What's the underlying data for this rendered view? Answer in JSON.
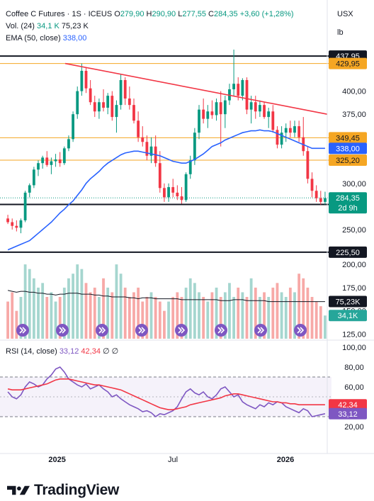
{
  "header": {
    "symbol": "Coffee C Futures · 1S · ICEUS",
    "open_label": "O",
    "open": "279,90",
    "high_label": "H",
    "high": "290,90",
    "low_label": "L",
    "low": "277,55",
    "close_label": "C",
    "close": "284,35",
    "change": "+3,60 (+1,28%)",
    "volume_label": "Vol. (24)",
    "volume_value": "34,1 K",
    "volume_ma": "75,23 K",
    "ema_label": "EMA (50, close)",
    "ema_value": "338,00",
    "rsi_label": "RSI (14, close)",
    "rsi_value": "33,12",
    "rsi_ma": "42,34",
    "rsi_na1": "∅",
    "rsi_na2": "∅"
  },
  "currency": "USX",
  "unit": "lb",
  "colors": {
    "up": "#089981",
    "down": "#f23645",
    "ema": "#2962ff",
    "trend": "#f23645",
    "hline_orange": "#f5a623",
    "hline_black": "#131722",
    "rsi": "#7e57c2",
    "rsi_ma": "#f23645",
    "vol_up": "#a5d6cf",
    "vol_down": "#f7a9a7"
  },
  "icons": [
    "tradingview-logo-icon",
    "flash-arrow-icon"
  ],
  "chart_data": [
    {
      "type": "candlestick",
      "ylim": [
        230,
        445
      ],
      "price_ticks": [
        "400,00",
        "375,00",
        "300,00",
        "250,00"
      ],
      "x_ticks": [
        "2025",
        "Jul",
        "2026"
      ],
      "candles": [
        {
          "o": 262,
          "h": 266,
          "l": 256,
          "c": 258
        },
        {
          "o": 258,
          "h": 262,
          "l": 250,
          "c": 254
        },
        {
          "o": 254,
          "h": 260,
          "l": 248,
          "c": 252
        },
        {
          "o": 252,
          "h": 262,
          "l": 246,
          "c": 260
        },
        {
          "o": 260,
          "h": 292,
          "l": 258,
          "c": 290
        },
        {
          "o": 290,
          "h": 300,
          "l": 285,
          "c": 298
        },
        {
          "o": 298,
          "h": 318,
          "l": 295,
          "c": 315
        },
        {
          "o": 315,
          "h": 325,
          "l": 308,
          "c": 322
        },
        {
          "o": 322,
          "h": 330,
          "l": 316,
          "c": 328
        },
        {
          "o": 328,
          "h": 335,
          "l": 318,
          "c": 320
        },
        {
          "o": 320,
          "h": 328,
          "l": 310,
          "c": 324
        },
        {
          "o": 324,
          "h": 332,
          "l": 318,
          "c": 326
        },
        {
          "o": 326,
          "h": 334,
          "l": 318,
          "c": 322
        },
        {
          "o": 322,
          "h": 340,
          "l": 320,
          "c": 338
        },
        {
          "o": 338,
          "h": 352,
          "l": 335,
          "c": 348
        },
        {
          "o": 348,
          "h": 378,
          "l": 345,
          "c": 375
        },
        {
          "o": 375,
          "h": 405,
          "l": 370,
          "c": 400
        },
        {
          "o": 400,
          "h": 430,
          "l": 395,
          "c": 422
        },
        {
          "o": 422,
          "h": 425,
          "l": 398,
          "c": 403
        },
        {
          "o": 403,
          "h": 412,
          "l": 385,
          "c": 388
        },
        {
          "o": 388,
          "h": 395,
          "l": 372,
          "c": 378
        },
        {
          "o": 378,
          "h": 392,
          "l": 370,
          "c": 388
        },
        {
          "o": 388,
          "h": 402,
          "l": 378,
          "c": 382
        },
        {
          "o": 382,
          "h": 398,
          "l": 375,
          "c": 395
        },
        {
          "o": 395,
          "h": 400,
          "l": 368,
          "c": 372
        },
        {
          "o": 372,
          "h": 390,
          "l": 355,
          "c": 385
        },
        {
          "o": 385,
          "h": 418,
          "l": 380,
          "c": 412
        },
        {
          "o": 412,
          "h": 415,
          "l": 385,
          "c": 392
        },
        {
          "o": 392,
          "h": 405,
          "l": 380,
          "c": 385
        },
        {
          "o": 385,
          "h": 392,
          "l": 365,
          "c": 368
        },
        {
          "o": 368,
          "h": 378,
          "l": 345,
          "c": 350
        },
        {
          "o": 350,
          "h": 362,
          "l": 340,
          "c": 345
        },
        {
          "o": 345,
          "h": 352,
          "l": 325,
          "c": 330
        },
        {
          "o": 330,
          "h": 350,
          "l": 322,
          "c": 340
        },
        {
          "o": 340,
          "h": 352,
          "l": 318,
          "c": 322
        },
        {
          "o": 322,
          "h": 335,
          "l": 290,
          "c": 295
        },
        {
          "o": 295,
          "h": 300,
          "l": 280,
          "c": 285
        },
        {
          "o": 285,
          "h": 300,
          "l": 280,
          "c": 296
        },
        {
          "o": 296,
          "h": 305,
          "l": 285,
          "c": 290
        },
        {
          "o": 290,
          "h": 298,
          "l": 282,
          "c": 286
        },
        {
          "o": 286,
          "h": 296,
          "l": 278,
          "c": 282
        },
        {
          "o": 282,
          "h": 312,
          "l": 280,
          "c": 310
        },
        {
          "o": 310,
          "h": 330,
          "l": 305,
          "c": 325
        },
        {
          "o": 325,
          "h": 360,
          "l": 320,
          "c": 355
        },
        {
          "o": 355,
          "h": 385,
          "l": 348,
          "c": 380
        },
        {
          "o": 380,
          "h": 392,
          "l": 365,
          "c": 370
        },
        {
          "o": 370,
          "h": 385,
          "l": 360,
          "c": 378
        },
        {
          "o": 378,
          "h": 390,
          "l": 370,
          "c": 374
        },
        {
          "o": 374,
          "h": 392,
          "l": 368,
          "c": 388
        },
        {
          "o": 388,
          "h": 400,
          "l": 340,
          "c": 375
        },
        {
          "o": 375,
          "h": 395,
          "l": 360,
          "c": 390
        },
        {
          "o": 390,
          "h": 408,
          "l": 385,
          "c": 402
        },
        {
          "o": 402,
          "h": 445,
          "l": 395,
          "c": 408
        },
        {
          "o": 408,
          "h": 415,
          "l": 390,
          "c": 395
        },
        {
          "o": 395,
          "h": 414,
          "l": 390,
          "c": 412
        },
        {
          "o": 412,
          "h": 415,
          "l": 375,
          "c": 380
        },
        {
          "o": 380,
          "h": 395,
          "l": 365,
          "c": 388
        },
        {
          "o": 388,
          "h": 395,
          "l": 370,
          "c": 378
        },
        {
          "o": 378,
          "h": 390,
          "l": 372,
          "c": 385
        },
        {
          "o": 385,
          "h": 388,
          "l": 370,
          "c": 372
        },
        {
          "o": 372,
          "h": 382,
          "l": 360,
          "c": 378
        },
        {
          "o": 378,
          "h": 385,
          "l": 355,
          "c": 358
        },
        {
          "o": 358,
          "h": 362,
          "l": 338,
          "c": 342
        },
        {
          "o": 342,
          "h": 362,
          "l": 338,
          "c": 355
        },
        {
          "o": 355,
          "h": 365,
          "l": 345,
          "c": 360
        },
        {
          "o": 360,
          "h": 368,
          "l": 350,
          "c": 355
        },
        {
          "o": 355,
          "h": 368,
          "l": 350,
          "c": 362
        },
        {
          "o": 362,
          "h": 368,
          "l": 345,
          "c": 350
        },
        {
          "o": 350,
          "h": 372,
          "l": 330,
          "c": 335
        },
        {
          "o": 335,
          "h": 340,
          "l": 300,
          "c": 305
        },
        {
          "o": 305,
          "h": 312,
          "l": 285,
          "c": 292
        },
        {
          "o": 292,
          "h": 298,
          "l": 280,
          "c": 284
        },
        {
          "o": 284,
          "h": 292,
          "l": 277,
          "c": 280
        },
        {
          "o": 280,
          "h": 291,
          "l": 277,
          "c": 284
        }
      ],
      "ema": [
        228,
        230,
        232,
        234,
        236,
        238,
        242,
        246,
        250,
        254,
        258,
        263,
        268,
        272,
        277,
        281,
        287,
        293,
        300,
        305,
        309,
        313,
        318,
        322,
        325,
        328,
        331,
        333,
        334,
        335,
        335,
        334,
        333,
        332,
        331,
        330,
        328,
        326,
        324,
        323,
        322,
        322,
        324,
        326,
        329,
        332,
        336,
        340,
        342,
        344,
        347,
        349,
        351,
        353,
        355,
        356,
        357,
        357,
        358,
        357,
        357,
        356,
        354,
        352,
        350,
        348,
        346,
        344,
        342,
        340,
        338,
        338,
        338,
        338
      ],
      "trend_line": {
        "from_value": 430,
        "to_value": 375,
        "label": ""
      },
      "hlines": [
        {
          "value": 437.95,
          "label": "437,95",
          "style": "black"
        },
        {
          "value": 429.95,
          "label": "429,95",
          "style": "orange"
        },
        {
          "value": 349.45,
          "label": "349,45",
          "style": "orange"
        },
        {
          "value": 325.2,
          "label": "325,20",
          "style": "orange"
        },
        {
          "value": 277.25,
          "label": "277,25",
          "style": "black"
        },
        {
          "value": 225.5,
          "label": "225,50",
          "style": "black"
        }
      ],
      "last_price": {
        "value": 284.35,
        "label": "284,35",
        "countdown": "2d 9h"
      },
      "ema_label": {
        "value": 338.0,
        "label": "338,00"
      }
    },
    {
      "type": "bar",
      "name": "Volume",
      "ylim": [
        120,
        210
      ],
      "ticks": [
        "200,00",
        "175,00",
        "150,00",
        "125,00"
      ],
      "values": [
        160,
        170,
        150,
        165,
        200,
        195,
        185,
        175,
        180,
        165,
        170,
        160,
        165,
        175,
        185,
        190,
        200,
        195,
        180,
        170,
        175,
        165,
        185,
        175,
        170,
        200,
        190,
        175,
        165,
        170,
        175,
        160,
        165,
        170,
        165,
        160,
        150,
        160,
        165,
        170,
        165,
        175,
        185,
        180,
        170,
        165,
        160,
        170,
        175,
        165,
        170,
        180,
        165,
        175,
        170,
        165,
        185,
        175,
        165,
        170,
        165,
        175,
        180,
        170,
        165,
        175,
        170,
        190,
        185,
        175,
        165,
        160,
        155,
        145
      ],
      "ma": [
        172,
        171,
        170,
        171,
        171,
        170,
        170,
        169,
        169,
        168,
        168,
        167,
        168,
        168,
        169,
        169,
        169,
        168,
        168,
        168,
        167,
        167,
        166,
        166,
        165,
        165,
        165,
        165,
        164,
        164,
        163,
        164,
        164,
        164,
        163,
        163,
        163,
        163,
        163,
        163,
        162,
        162,
        162,
        162,
        162,
        162,
        162,
        162,
        162,
        161,
        161,
        161,
        162,
        162,
        162,
        161,
        161,
        161,
        161,
        161,
        160,
        160,
        160,
        160,
        160,
        160,
        160,
        160,
        160,
        160,
        160,
        160,
        160,
        160
      ],
      "value_label": "34,1K",
      "ma_label": "75,23K",
      "events": 8
    },
    {
      "type": "line",
      "name": "RSI",
      "ylim": [
        0,
        100
      ],
      "ticks": [
        "100,00",
        "80,00",
        "60,00",
        "20,00"
      ],
      "bands": [
        70,
        30
      ],
      "rsi": [
        55,
        50,
        48,
        52,
        60,
        65,
        63,
        60,
        62,
        68,
        72,
        78,
        80,
        75,
        68,
        65,
        62,
        60,
        63,
        58,
        60,
        62,
        58,
        55,
        50,
        52,
        48,
        45,
        42,
        40,
        38,
        35,
        36,
        34,
        30,
        33,
        32,
        34,
        36,
        40,
        48,
        55,
        58,
        54,
        52,
        55,
        50,
        48,
        52,
        58,
        60,
        55,
        50,
        52,
        45,
        42,
        40,
        38,
        42,
        40,
        44,
        42,
        45,
        44,
        40,
        38,
        36,
        34,
        38,
        36,
        30,
        31,
        32,
        33
      ],
      "ma": [
        58,
        57,
        57,
        57,
        58,
        59,
        60,
        61,
        62,
        63,
        65,
        67,
        68,
        68,
        68,
        67,
        66,
        65,
        64,
        63,
        62,
        62,
        61,
        60,
        59,
        58,
        57,
        55,
        53,
        51,
        49,
        47,
        45,
        43,
        41,
        39,
        38,
        37,
        37,
        38,
        39,
        40,
        42,
        43,
        44,
        45,
        46,
        47,
        48,
        49,
        51,
        52,
        53,
        53,
        52,
        51,
        50,
        49,
        48,
        47,
        46,
        45,
        45,
        44,
        44,
        43,
        43,
        42,
        42,
        42,
        42,
        42,
        42,
        42
      ],
      "value_label": "33,12",
      "ma_label": "42,34"
    }
  ]
}
